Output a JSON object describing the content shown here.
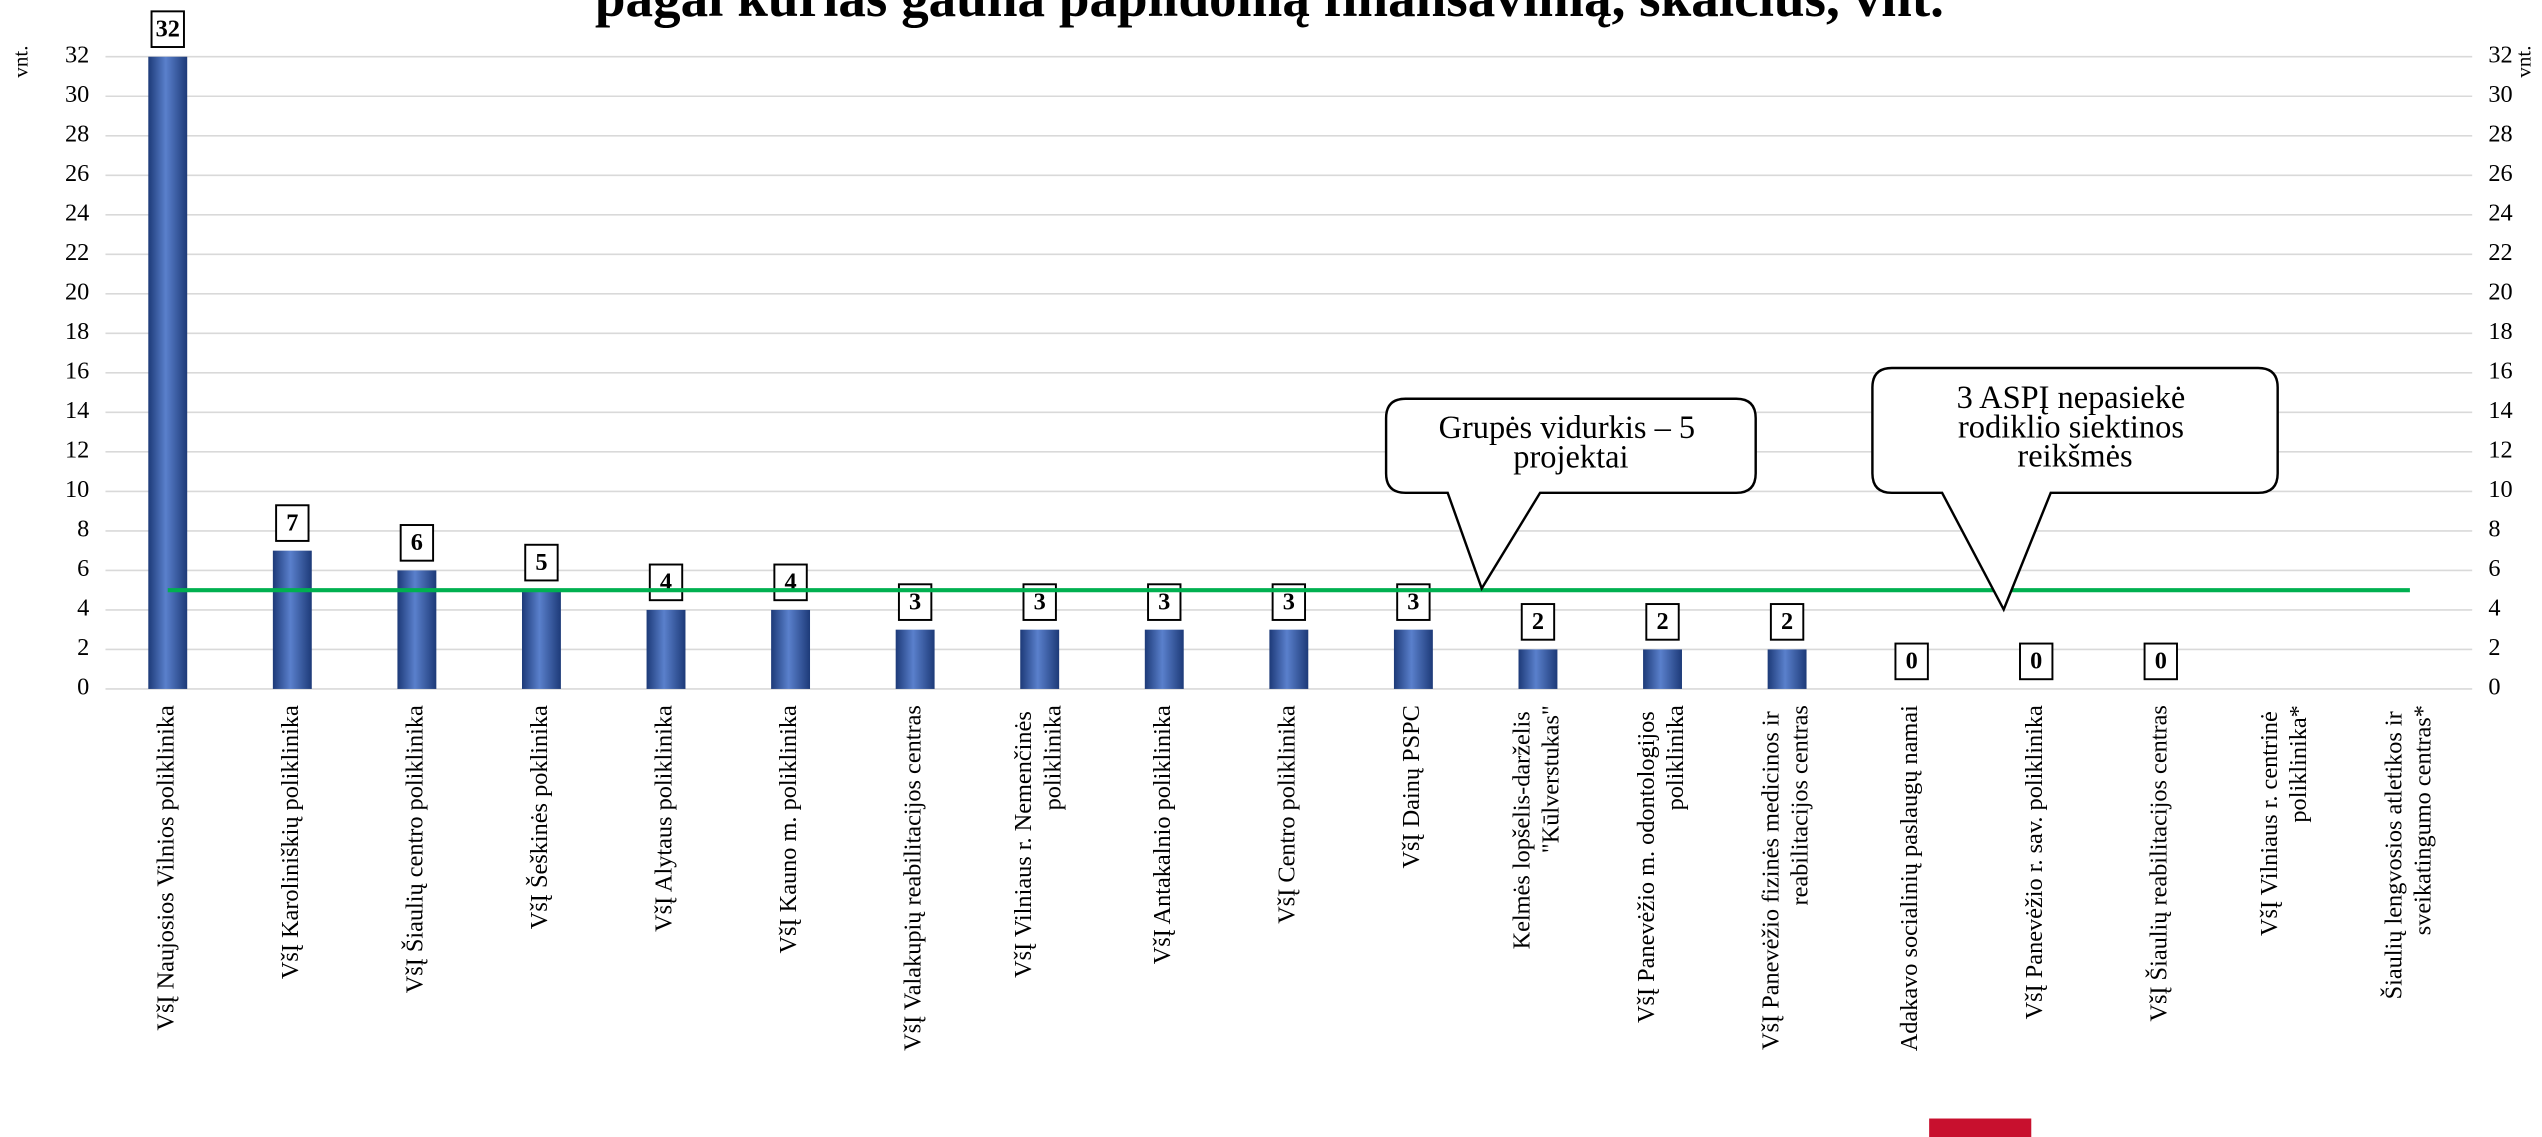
{
  "chart_data": {
    "type": "bar",
    "title": "pagal kurias gauna papildomą finansavimą, skaičius, vnt.",
    "y_label": "vnt.",
    "y2_label": "vnt.",
    "categories": [
      "VšĮ Naujosios Vilnios poliklinika",
      "VšĮ Karoliniškių poliklinika",
      "VšĮ Šiaulių centro poliklinika",
      "VšĮ Šeškinės poklinika",
      "VšĮ Alytaus poliklinika",
      "VšĮ Kauno m. poliklinika",
      "VšĮ Valakupių reabilitacijos centras",
      "VšĮ Vilniaus r. Nemenčinės poliklinika",
      "VšĮ Antakalnio poliklinika",
      "VšĮ Centro poliklinika",
      "VšĮ Dainų PSPC",
      "Kelmės lopšelis-darželis \"Kūlverstukas\"",
      "VšĮ Panevėžio m. odontologijos poliklinika",
      "VšĮ Panevėžio fizinės medicinos ir reabilitacijos centras",
      "Adakavo socialinių paslaugų namai",
      "VšĮ Panevėžio r. sav. poliklinika",
      "VšĮ Šiaulių reabilitacijos centras",
      "VšĮ Vilniaus r. centrinė poliklinika*",
      "Šiaulių lengvosios atletikos ir sveikatingumo centras*"
    ],
    "values": [
      32,
      7,
      6,
      5,
      4,
      4,
      3,
      3,
      3,
      3,
      3,
      2,
      2,
      2,
      0,
      0,
      0,
      null,
      null
    ],
    "color": "#3a5fae",
    "zero_label_color": "#e00000",
    "average": 5,
    "average_color": "#00b050",
    "annotations": [
      "Grupės vidurkis – 5 projektai",
      "3 ASPĮ nepasiekė rodiklio siektinos reikšmės"
    ],
    "ylim": [
      0,
      32
    ],
    "yticks": [
      0,
      2,
      4,
      6,
      8,
      10,
      12,
      14,
      16,
      18,
      20,
      22,
      24,
      26,
      28,
      30,
      32
    ],
    "grid": true
  }
}
